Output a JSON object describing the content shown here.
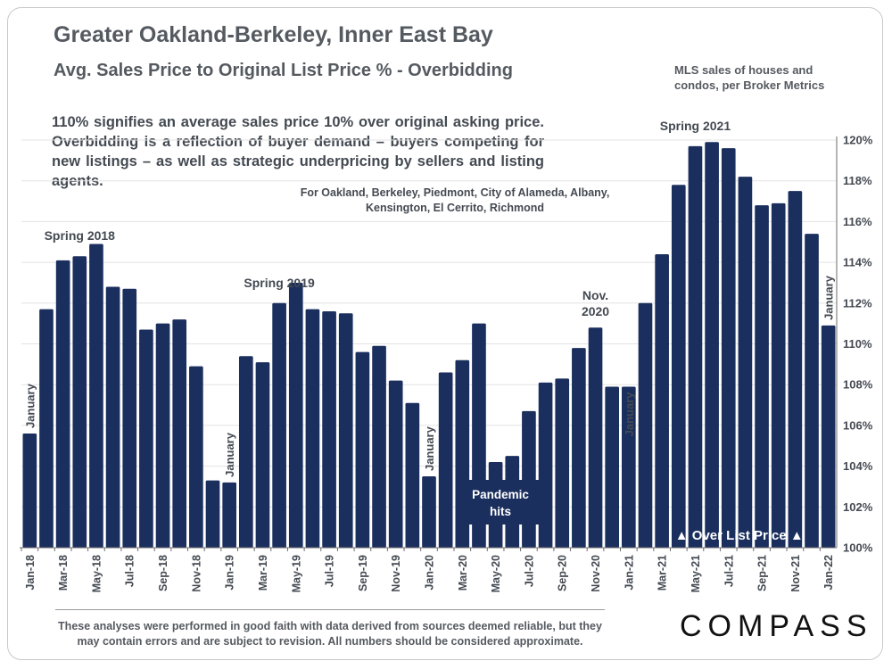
{
  "header": {
    "title": "Greater Oakland-Berkeley, Inner East Bay",
    "subtitle": "Avg. Sales Price to Original List Price % - Overbidding",
    "source_note": "MLS sales of houses and condos, per Broker Metrics"
  },
  "intro_text": "110% signifies an average sales price 10% over original asking price. Overbidding is a reflection of buyer demand – buyers competing for new listings – as well as strategic underpricing by sellers and listing agents.",
  "coverage_text": "For Oakland, Berkeley, Piedmont, City of Alameda, Albany, Kensington, El Cerrito, Richmond",
  "footer": {
    "disclaimer": "These analyses were performed in good faith with data derived from sources deemed reliable, but they may contain errors and are subject to revision. All numbers should be considered  approximate.",
    "logo": "COMPASS"
  },
  "colors": {
    "bar": "#1b2f5e",
    "text": "#444a52",
    "grid": "#e3e3e3"
  },
  "chart_data": {
    "type": "bar",
    "title": "Avg. Sales Price to Original List Price % - Overbidding",
    "xlabel": "",
    "ylabel": "",
    "ylim": [
      100,
      120
    ],
    "yticks": [
      "100%",
      "102%",
      "104%",
      "106%",
      "108%",
      "110%",
      "112%",
      "114%",
      "116%",
      "118%",
      "120%"
    ],
    "grid": true,
    "categories": [
      "Jan-18",
      "Feb-18",
      "Mar-18",
      "Apr-18",
      "May-18",
      "Jun-18",
      "Jul-18",
      "Aug-18",
      "Sep-18",
      "Oct-18",
      "Nov-18",
      "Dec-18",
      "Jan-19",
      "Feb-19",
      "Mar-19",
      "Apr-19",
      "May-19",
      "Jun-19",
      "Jul-19",
      "Aug-19",
      "Sep-19",
      "Oct-19",
      "Nov-19",
      "Dec-19",
      "Jan-20",
      "Feb-20",
      "Mar-20",
      "Apr-20",
      "May-20",
      "Jun-20",
      "Jul-20",
      "Aug-20",
      "Sep-20",
      "Oct-20",
      "Nov-20",
      "Dec-20",
      "Jan-21",
      "Feb-21",
      "Mar-21",
      "Apr-21",
      "May-21",
      "Jun-21",
      "Jul-21",
      "Aug-21",
      "Sep-21",
      "Oct-21",
      "Nov-21",
      "Dec-21",
      "Jan-22"
    ],
    "x_tick_labels": [
      "Jan-18",
      "Mar-18",
      "May-18",
      "Jul-18",
      "Sep-18",
      "Nov-18",
      "Jan-19",
      "Mar-19",
      "May-19",
      "Jul-19",
      "Sep-19",
      "Nov-19",
      "Jan-20",
      "Mar-20",
      "May-20",
      "Jul-20",
      "Sep-20",
      "Nov-20",
      "Jan-21",
      "Mar-21",
      "May-21",
      "Jul-21",
      "Sep-21",
      "Nov-21",
      "Jan-22"
    ],
    "values": [
      105.6,
      111.7,
      114.1,
      114.3,
      114.9,
      112.8,
      112.7,
      110.7,
      111.0,
      111.2,
      108.9,
      103.3,
      103.2,
      109.4,
      109.1,
      112.0,
      113.0,
      111.7,
      111.6,
      111.5,
      109.6,
      109.9,
      108.2,
      107.1,
      103.5,
      108.6,
      109.2,
      111.0,
      104.2,
      104.5,
      106.7,
      108.1,
      108.3,
      109.8,
      110.8,
      107.9,
      107.9,
      112.0,
      114.4,
      117.8,
      119.7,
      119.9,
      119.6,
      118.2,
      116.8,
      116.9,
      117.5,
      115.4,
      110.9
    ],
    "annotations": [
      {
        "text": "January",
        "category": "Jan-18",
        "orientation": "vertical"
      },
      {
        "text": "January",
        "category": "Jan-19",
        "orientation": "vertical"
      },
      {
        "text": "January",
        "category": "Jan-20",
        "orientation": "vertical"
      },
      {
        "text": "January",
        "category": "Jan-21",
        "orientation": "vertical"
      },
      {
        "text": "January",
        "category": "Jan-22",
        "orientation": "vertical"
      },
      {
        "text": "Spring 2018",
        "category": "Apr-18"
      },
      {
        "text": "Spring 2019",
        "category": "Apr-19"
      },
      {
        "text": "Spring 2021",
        "category": "May-21"
      },
      {
        "text": "Nov. 2020",
        "category": "Nov-20"
      },
      {
        "text": "Pandemic hits",
        "category": "Apr-20",
        "boxed": true
      },
      {
        "text": "▲ Over List Price ▲",
        "category": "Jul-21",
        "boxed": true
      }
    ]
  }
}
